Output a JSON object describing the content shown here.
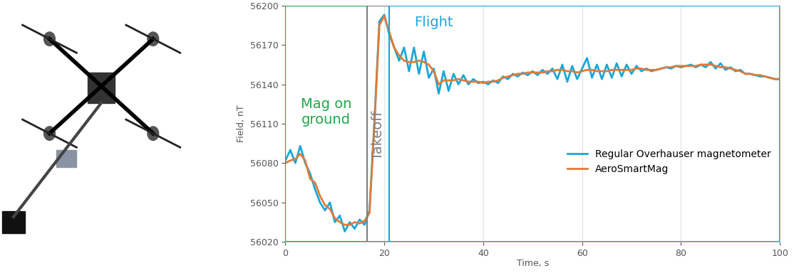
{
  "chart_data": {
    "type": "line",
    "x_label": "Time, s",
    "y_label": "Field, nT",
    "xlim": [
      0,
      100
    ],
    "xticks": [
      0,
      20,
      40,
      60,
      80,
      100
    ],
    "ylim": [
      56020,
      56200
    ],
    "yticks": [
      56020,
      56050,
      56080,
      56110,
      56140,
      56170,
      56200
    ],
    "grid": "x",
    "legend": "lower right",
    "regions": [
      {
        "label": "Mag on\nground",
        "start": 0,
        "end": 16.5,
        "color": "#22a84a"
      },
      {
        "label": "Takeoff",
        "start": 16.5,
        "end": 21,
        "color": "#808080"
      },
      {
        "label": "Flight",
        "start": 21,
        "end": 100,
        "color": "#1aa7d8"
      }
    ],
    "x": [
      0,
      1,
      2,
      3,
      4,
      5,
      6,
      7,
      8,
      9,
      10,
      11,
      12,
      13,
      14,
      15,
      16,
      17,
      18,
      19,
      20,
      21,
      22,
      23,
      24,
      25,
      26,
      27,
      28,
      29,
      30,
      31,
      32,
      33,
      34,
      35,
      36,
      37,
      38,
      39,
      40,
      41,
      42,
      43,
      44,
      45,
      46,
      47,
      48,
      49,
      50,
      51,
      52,
      53,
      54,
      55,
      56,
      57,
      58,
      59,
      60,
      61,
      62,
      63,
      64,
      65,
      66,
      67,
      68,
      69,
      70,
      71,
      72,
      73,
      74,
      75,
      76,
      77,
      78,
      79,
      80,
      81,
      82,
      83,
      84,
      85,
      86,
      87,
      88,
      89,
      90,
      91,
      92,
      93,
      94,
      95,
      96,
      97,
      98,
      99,
      100
    ],
    "series": [
      {
        "name": "Regular Overhauser magnetometer",
        "color": "#1aa7d8",
        "values": [
          56082,
          56090,
          56080,
          56093,
          56080,
          56072,
          56060,
          56050,
          56044,
          56050,
          56035,
          56040,
          56028,
          56035,
          56030,
          56037,
          56033,
          56044,
          56112,
          56188,
          56193,
          56178,
          56168,
          56158,
          56168,
          56150,
          56168,
          56148,
          56165,
          56145,
          56152,
          56133,
          56150,
          56135,
          56148,
          56140,
          56147,
          56140,
          56144,
          56141,
          56142,
          56140,
          56143,
          56141,
          56146,
          56144,
          56148,
          56146,
          56149,
          56147,
          56150,
          56147,
          56151,
          56148,
          56152,
          56144,
          56155,
          56142,
          56154,
          56144,
          56152,
          56160,
          56145,
          56155,
          56144,
          56155,
          56145,
          56156,
          56146,
          56155,
          56148,
          56154,
          56150,
          56152,
          56150,
          56151,
          56152,
          56153,
          56152,
          56154,
          56153,
          56154,
          56155,
          56153,
          56155,
          56153,
          56157,
          56152,
          56156,
          56151,
          56153,
          56150,
          56151,
          56148,
          56148,
          56147,
          56146,
          56146,
          56145,
          56144,
          56144
        ]
      },
      {
        "name": "AeroSmartMag",
        "color": "#e07b39",
        "values": [
          56080,
          56082,
          56083,
          56087,
          56082,
          56068,
          56065,
          56055,
          56048,
          56045,
          56038,
          56035,
          56033,
          56033,
          56035,
          56034,
          56036,
          56042,
          56110,
          56185,
          56192,
          56180,
          56168,
          56162,
          56158,
          56157,
          56157,
          56158,
          56157,
          56155,
          56150,
          56140,
          56143,
          56143,
          56143,
          56144,
          56143,
          56142,
          56142,
          56142,
          56141,
          56142,
          56142,
          56143,
          56145,
          56146,
          56147,
          56148,
          56148,
          56149,
          56149,
          56149,
          56149,
          56150,
          56150,
          56151,
          56151,
          56150,
          56150,
          56149,
          56150,
          56151,
          56151,
          56150,
          56150,
          56150,
          56151,
          56151,
          56151,
          56151,
          56151,
          56152,
          56152,
          56151,
          56151,
          56151,
          56152,
          56153,
          56153,
          56154,
          56154,
          56154,
          56154,
          56154,
          56155,
          56155,
          56155,
          56154,
          56153,
          56153,
          56152,
          56151,
          56150,
          56148,
          56148,
          56147,
          56147,
          56146,
          56145,
          56144,
          56144
        ]
      }
    ]
  }
}
